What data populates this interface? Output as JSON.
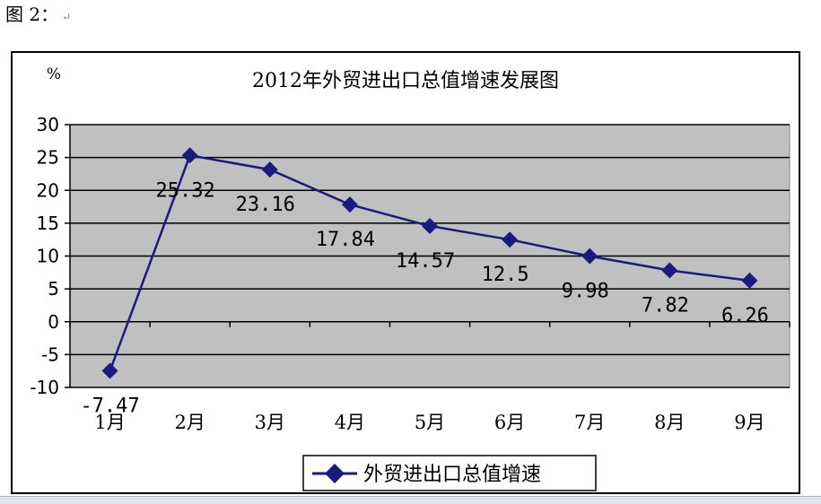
{
  "caption": {
    "text": "图 2：",
    "mark": "↵"
  },
  "chart_data": {
    "type": "line",
    "title": "2012年外贸进出口总值增速发展图",
    "ylabel": "%",
    "xlabel": "",
    "categories": [
      "1月",
      "2月",
      "3月",
      "4月",
      "5月",
      "6月",
      "7月",
      "8月",
      "9月"
    ],
    "series": [
      {
        "name": "外贸进出口总值增速",
        "values": [
          -7.47,
          25.32,
          23.16,
          17.84,
          14.57,
          12.5,
          9.98,
          7.82,
          6.26
        ],
        "labels": [
          "-7.47",
          "25.32",
          "23.16",
          "17.84",
          "14.57",
          "12.5",
          "9.98",
          "7.82",
          "6.26"
        ]
      }
    ],
    "ylim": [
      -10,
      30
    ],
    "yticks": [
      "30",
      "25",
      "20",
      "15",
      "10",
      "5",
      "0",
      "-5",
      "-10"
    ],
    "grid": true,
    "legend": "bottom",
    "colors": {
      "line": "#1a1a80",
      "plot_bg": "#c0c0c0",
      "marker": "#1a1a80"
    }
  }
}
